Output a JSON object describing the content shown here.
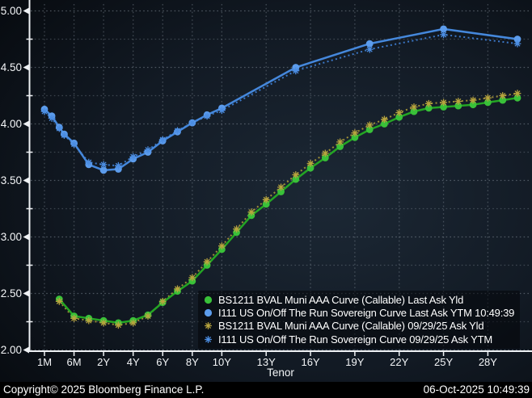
{
  "chart_data": {
    "type": "line",
    "title": "",
    "xlabel": "Tenor",
    "ylabel": "",
    "ylim": [
      2.0,
      5.0
    ],
    "y_tick_labels": [
      "2.00",
      "2.50",
      "3.00",
      "3.50",
      "4.00",
      "4.50",
      "5.00"
    ],
    "y_minor_step": 0.25,
    "x_tick_labels": [
      "1M",
      "6M",
      "2Y",
      "4Y",
      "6Y",
      "8Y",
      "10Y",
      "13Y",
      "16Y",
      "19Y",
      "22Y",
      "25Y",
      "28Y"
    ],
    "grid": "dotted",
    "legend_position": "inside-bottom-left",
    "series": [
      {
        "name": "BS1211 BVAL Muni AAA Curve (Callable) Last Ask Yld",
        "marker": "dot",
        "line": "solid",
        "color": "#24a524",
        "marker_color": "#39c139",
        "tenors": [
          "3M",
          "6M",
          "1Y",
          "2Y",
          "3Y",
          "4Y",
          "5Y",
          "6Y",
          "7Y",
          "8Y",
          "9Y",
          "10Y",
          "11Y",
          "12Y",
          "13Y",
          "14Y",
          "15Y",
          "16Y",
          "17Y",
          "18Y",
          "19Y",
          "20Y",
          "21Y",
          "22Y",
          "23Y",
          "24Y",
          "25Y",
          "26Y",
          "27Y",
          "28Y",
          "29Y",
          "30Y"
        ],
        "values": [
          2.45,
          2.3,
          2.28,
          2.26,
          2.24,
          2.26,
          2.31,
          2.42,
          2.52,
          2.61,
          2.75,
          2.89,
          3.04,
          3.19,
          3.29,
          3.4,
          3.51,
          3.61,
          3.7,
          3.8,
          3.88,
          3.95,
          4.0,
          4.06,
          4.11,
          4.14,
          4.15,
          4.16,
          4.17,
          4.19,
          4.21,
          4.23
        ]
      },
      {
        "name": "I111 US On/Off The Run Sovereign Curve Last Ask YTM 10:49:39",
        "marker": "dot",
        "line": "solid",
        "color": "#4588dc",
        "marker_color": "#5c9cec",
        "tenors": [
          "1M",
          "2M",
          "3M",
          "4M",
          "6M",
          "1Y",
          "2Y",
          "3Y",
          "4Y",
          "5Y",
          "6Y",
          "7Y",
          "8Y",
          "9Y",
          "10Y",
          "15Y",
          "20Y",
          "25Y",
          "30Y"
        ],
        "values": [
          4.13,
          4.07,
          3.97,
          3.91,
          3.83,
          3.64,
          3.59,
          3.6,
          3.69,
          3.75,
          3.85,
          3.93,
          4.01,
          4.08,
          4.14,
          4.5,
          4.71,
          4.84,
          4.75
        ]
      },
      {
        "name": "BS1211 BVAL Muni AAA Curve (Callable) 09/29/25 Ask Yld",
        "marker": "asterisk",
        "line": "dotted",
        "color": "#9d8f36",
        "marker_color": "#b7a43e",
        "tenors": [
          "3M",
          "6M",
          "1Y",
          "2Y",
          "3Y",
          "4Y",
          "5Y",
          "6Y",
          "7Y",
          "8Y",
          "9Y",
          "10Y",
          "11Y",
          "12Y",
          "13Y",
          "14Y",
          "15Y",
          "16Y",
          "17Y",
          "18Y",
          "19Y",
          "20Y",
          "21Y",
          "22Y",
          "23Y",
          "24Y",
          "25Y",
          "26Y",
          "27Y",
          "28Y",
          "29Y",
          "30Y"
        ],
        "values": [
          2.43,
          2.28,
          2.26,
          2.24,
          2.22,
          2.24,
          2.3,
          2.43,
          2.54,
          2.64,
          2.78,
          2.92,
          3.07,
          3.22,
          3.33,
          3.44,
          3.55,
          3.65,
          3.74,
          3.84,
          3.92,
          3.99,
          4.04,
          4.1,
          4.15,
          4.18,
          4.19,
          4.2,
          4.21,
          4.23,
          4.25,
          4.27
        ]
      },
      {
        "name": "I111 US On/Off The Run Sovereign Curve 09/29/25 Ask YTM",
        "marker": "asterisk",
        "line": "dotted",
        "color": "#3b78c8",
        "marker_color": "#4b8de2",
        "tenors": [
          "1M",
          "2M",
          "3M",
          "4M",
          "6M",
          "1Y",
          "2Y",
          "3Y",
          "4Y",
          "5Y",
          "6Y",
          "7Y",
          "8Y",
          "9Y",
          "10Y",
          "15Y",
          "20Y",
          "25Y",
          "30Y"
        ],
        "values": [
          4.11,
          4.05,
          3.96,
          3.9,
          3.82,
          3.66,
          3.64,
          3.63,
          3.71,
          3.77,
          3.86,
          3.94,
          4.01,
          4.07,
          4.12,
          4.47,
          4.66,
          4.79,
          4.71
        ]
      }
    ]
  },
  "footer": {
    "copyright": "Copyright© 2025 Bloomberg Finance L.P.",
    "datetime": "06-Oct-2025 10:49:39"
  },
  "colors": {
    "background_dark": "#06090d",
    "background_mid": "#121a24",
    "background_light": "#1c2835",
    "grid": "#8a95a0",
    "axis": "#eef1f4",
    "text": "#ffffff"
  }
}
